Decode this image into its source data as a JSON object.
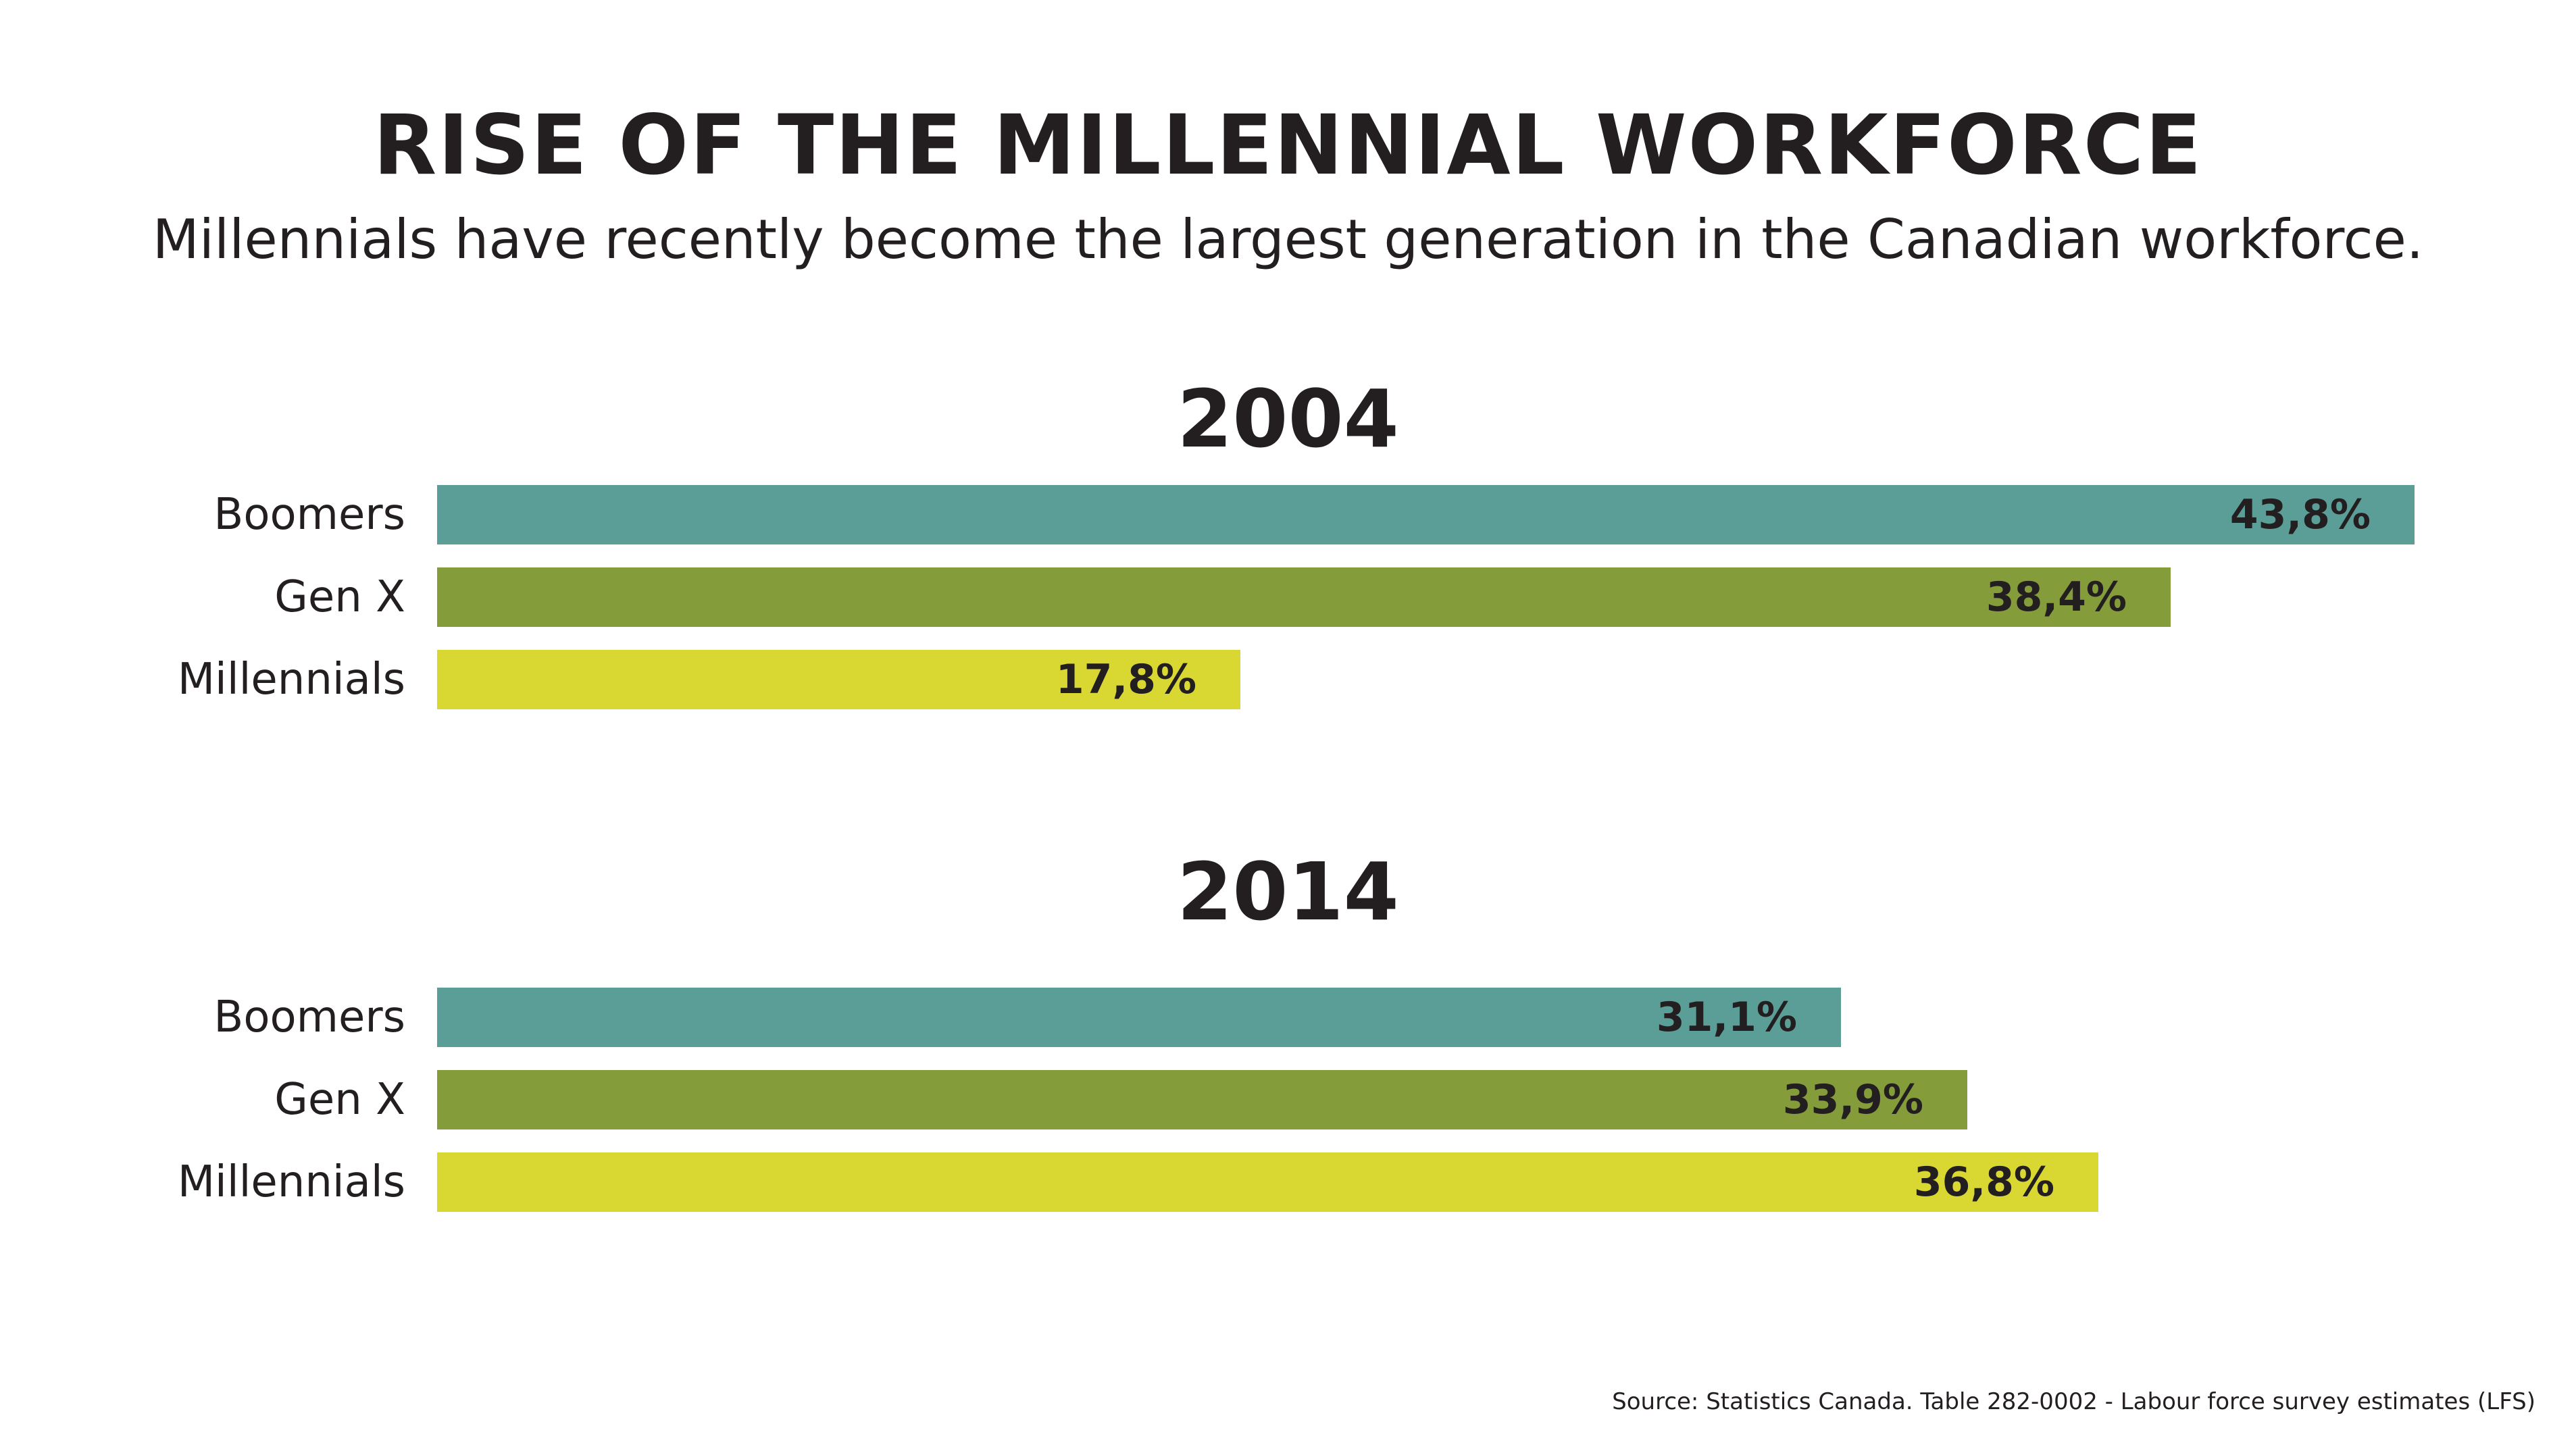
{
  "title": "RISE OF THE MILLENNIAL WORKFORCE",
  "subtitle": "Millennials have recently become the largest generation in the Canadian workforce.",
  "source": "Source: Statistics Canada. Table 282-0002 - Labour force survey estimates (LFS)",
  "colors": {
    "boomers": "#5b9e97",
    "gen_x": "#859c3b",
    "millennials": "#d9d832"
  },
  "chart_data": [
    {
      "type": "bar",
      "orientation": "horizontal",
      "title": "2004",
      "categories": [
        "Boomers",
        "Gen X",
        "Millennials"
      ],
      "values": [
        43.8,
        38.4,
        17.8
      ],
      "value_labels": [
        "43,8%",
        "38,4%",
        "17,8%"
      ],
      "xlim": [
        0,
        44.6
      ],
      "grid": false
    },
    {
      "type": "bar",
      "orientation": "horizontal",
      "title": "2014",
      "categories": [
        "Boomers",
        "Gen X",
        "Millennials"
      ],
      "values": [
        31.1,
        33.9,
        36.8
      ],
      "value_labels": [
        "31,1%",
        "33,9%",
        "36,8%"
      ],
      "xlim": [
        0,
        44.6
      ],
      "grid": false
    }
  ]
}
